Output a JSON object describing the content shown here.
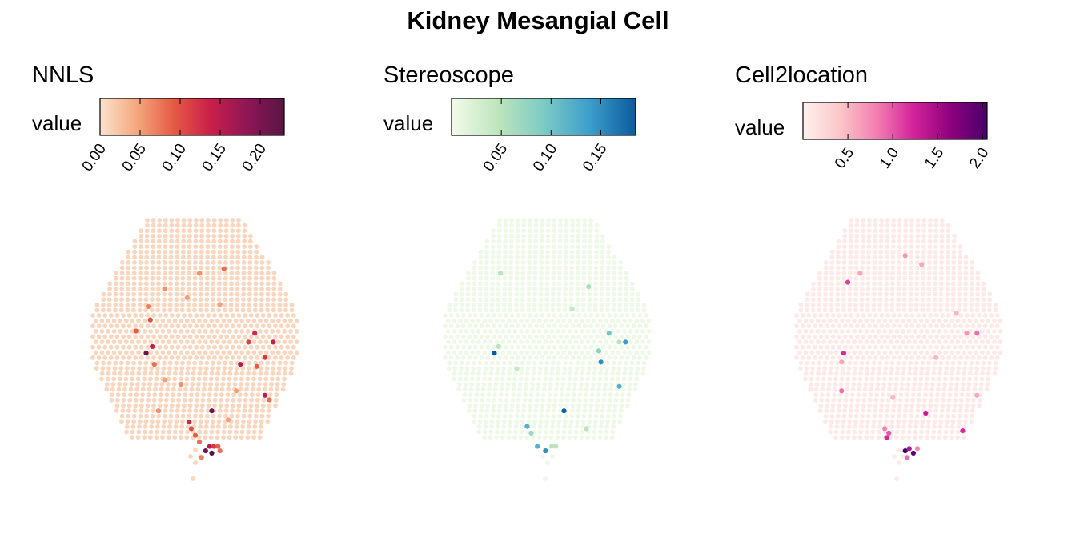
{
  "title": "Kidney Mesangial Cell",
  "chart_data": [
    {
      "type": "heatmap",
      "subtype": "spatial-spot-map",
      "panel": "NNLS",
      "legend_label": "value",
      "color_scale": [
        "#fbe3cf",
        "#f4a77e",
        "#e55a45",
        "#c91f4a",
        "#8d1756",
        "#571543"
      ],
      "scale_range": [
        0.0,
        0.23
      ],
      "ticks": [
        "0.00",
        "0.05",
        "0.10",
        "0.15",
        "0.20"
      ],
      "tick_values": [
        0.0,
        0.05,
        0.1,
        0.15,
        0.2
      ],
      "base_value": 0.01,
      "highlighted_spots": [
        {
          "x": 0.64,
          "y": 0.22,
          "v": 0.08
        },
        {
          "x": 0.52,
          "y": 0.24,
          "v": 0.06
        },
        {
          "x": 0.27,
          "y": 0.39,
          "v": 0.07
        },
        {
          "x": 0.28,
          "y": 0.45,
          "v": 0.1
        },
        {
          "x": 0.21,
          "y": 0.5,
          "v": 0.09
        },
        {
          "x": 0.79,
          "y": 0.51,
          "v": 0.13
        },
        {
          "x": 0.76,
          "y": 0.55,
          "v": 0.11
        },
        {
          "x": 0.29,
          "y": 0.57,
          "v": 0.14
        },
        {
          "x": 0.26,
          "y": 0.6,
          "v": 0.21
        },
        {
          "x": 0.84,
          "y": 0.62,
          "v": 0.12
        },
        {
          "x": 0.8,
          "y": 0.66,
          "v": 0.09
        },
        {
          "x": 0.72,
          "y": 0.65,
          "v": 0.15
        },
        {
          "x": 0.88,
          "y": 0.55,
          "v": 0.14
        },
        {
          "x": 0.3,
          "y": 0.65,
          "v": 0.08
        },
        {
          "x": 0.84,
          "y": 0.79,
          "v": 0.15
        },
        {
          "x": 0.86,
          "y": 0.81,
          "v": 0.08
        },
        {
          "x": 0.58,
          "y": 0.86,
          "v": 0.21
        },
        {
          "x": 0.47,
          "y": 0.91,
          "v": 0.13
        },
        {
          "x": 0.48,
          "y": 0.94,
          "v": 0.1
        },
        {
          "x": 0.5,
          "y": 0.97,
          "v": 0.09
        },
        {
          "x": 0.52,
          "y": 1.0,
          "v": 0.08
        },
        {
          "x": 0.57,
          "y": 1.02,
          "v": 0.15
        },
        {
          "x": 0.59,
          "y": 1.02,
          "v": 0.12
        },
        {
          "x": 0.61,
          "y": 1.02,
          "v": 0.09
        },
        {
          "x": 0.55,
          "y": 1.04,
          "v": 0.21
        },
        {
          "x": 0.58,
          "y": 1.05,
          "v": 0.23
        },
        {
          "x": 0.62,
          "y": 1.04,
          "v": 0.08
        },
        {
          "x": 0.53,
          "y": 1.07,
          "v": 0.07
        },
        {
          "x": 0.35,
          "y": 0.31,
          "v": 0.06
        },
        {
          "x": 0.46,
          "y": 0.35,
          "v": 0.05
        },
        {
          "x": 0.62,
          "y": 0.38,
          "v": 0.05
        },
        {
          "x": 0.35,
          "y": 0.72,
          "v": 0.05
        },
        {
          "x": 0.43,
          "y": 0.74,
          "v": 0.06
        },
        {
          "x": 0.7,
          "y": 0.77,
          "v": 0.05
        },
        {
          "x": 0.32,
          "y": 0.86,
          "v": 0.06
        },
        {
          "x": 0.66,
          "y": 0.9,
          "v": 0.05
        }
      ]
    },
    {
      "type": "heatmap",
      "subtype": "spatial-spot-map",
      "panel": "Stereoscope",
      "legend_label": "value",
      "color_scale": [
        "#f3fbeb",
        "#bfe5bd",
        "#7ccbc4",
        "#3e9ecb",
        "#0c5a9d"
      ],
      "scale_range": [
        0.0,
        0.185
      ],
      "ticks": [
        "0.05",
        "0.10",
        "0.15"
      ],
      "tick_values": [
        0.05,
        0.1,
        0.15
      ],
      "base_value": 0.005,
      "highlighted_spots": [
        {
          "x": 0.27,
          "y": 0.24,
          "v": 0.05
        },
        {
          "x": 0.7,
          "y": 0.3,
          "v": 0.06
        },
        {
          "x": 0.26,
          "y": 0.57,
          "v": 0.05
        },
        {
          "x": 0.24,
          "y": 0.6,
          "v": 0.19
        },
        {
          "x": 0.8,
          "y": 0.51,
          "v": 0.1
        },
        {
          "x": 0.85,
          "y": 0.55,
          "v": 0.05
        },
        {
          "x": 0.88,
          "y": 0.55,
          "v": 0.14
        },
        {
          "x": 0.75,
          "y": 0.59,
          "v": 0.08
        },
        {
          "x": 0.76,
          "y": 0.64,
          "v": 0.15
        },
        {
          "x": 0.85,
          "y": 0.75,
          "v": 0.12
        },
        {
          "x": 0.35,
          "y": 0.67,
          "v": 0.04
        },
        {
          "x": 0.58,
          "y": 0.86,
          "v": 0.18
        },
        {
          "x": 0.4,
          "y": 0.93,
          "v": 0.12
        },
        {
          "x": 0.42,
          "y": 0.96,
          "v": 0.07
        },
        {
          "x": 0.45,
          "y": 1.02,
          "v": 0.12
        },
        {
          "x": 0.49,
          "y": 1.04,
          "v": 0.15
        },
        {
          "x": 0.52,
          "y": 1.02,
          "v": 0.05
        },
        {
          "x": 0.54,
          "y": 1.02,
          "v": 0.05
        },
        {
          "x": 0.69,
          "y": 0.94,
          "v": 0.05
        },
        {
          "x": 0.62,
          "y": 0.4,
          "v": 0.04
        }
      ]
    },
    {
      "type": "heatmap",
      "subtype": "spatial-spot-map",
      "panel": "Cell2location",
      "legend_label": "value",
      "color_scale": [
        "#fff1ee",
        "#fbc6c9",
        "#f47fb1",
        "#d3239a",
        "#8e017d",
        "#49006a"
      ],
      "scale_range": [
        0.0,
        2.05
      ],
      "ticks": [
        "0.5",
        "1.0",
        "1.5",
        "2.0"
      ],
      "tick_values": [
        0.5,
        1.0,
        1.5,
        2.0
      ],
      "base_value": 0.08,
      "highlighted_spots": [
        {
          "x": 0.53,
          "y": 0.16,
          "v": 0.7
        },
        {
          "x": 0.61,
          "y": 0.2,
          "v": 0.6
        },
        {
          "x": 0.31,
          "y": 0.24,
          "v": 0.6
        },
        {
          "x": 0.25,
          "y": 0.28,
          "v": 1.1
        },
        {
          "x": 0.78,
          "y": 0.42,
          "v": 0.5
        },
        {
          "x": 0.83,
          "y": 0.51,
          "v": 0.7
        },
        {
          "x": 0.88,
          "y": 0.51,
          "v": 0.9
        },
        {
          "x": 0.23,
          "y": 0.6,
          "v": 1.2
        },
        {
          "x": 0.22,
          "y": 0.64,
          "v": 0.6
        },
        {
          "x": 0.22,
          "y": 0.77,
          "v": 0.9
        },
        {
          "x": 0.88,
          "y": 0.79,
          "v": 0.6
        },
        {
          "x": 0.63,
          "y": 0.87,
          "v": 1.3
        },
        {
          "x": 0.81,
          "y": 0.95,
          "v": 1.2
        },
        {
          "x": 0.43,
          "y": 0.94,
          "v": 0.8
        },
        {
          "x": 0.45,
          "y": 0.96,
          "v": 1.0
        },
        {
          "x": 0.44,
          "y": 0.98,
          "v": 1.2
        },
        {
          "x": 0.53,
          "y": 1.04,
          "v": 2.05
        },
        {
          "x": 0.57,
          "y": 1.05,
          "v": 1.9
        },
        {
          "x": 0.55,
          "y": 1.03,
          "v": 1.4
        },
        {
          "x": 0.59,
          "y": 1.03,
          "v": 0.8
        },
        {
          "x": 0.54,
          "y": 1.07,
          "v": 0.9
        },
        {
          "x": 0.47,
          "y": 0.8,
          "v": 0.5
        },
        {
          "x": 0.68,
          "y": 0.62,
          "v": 0.5
        }
      ]
    }
  ]
}
